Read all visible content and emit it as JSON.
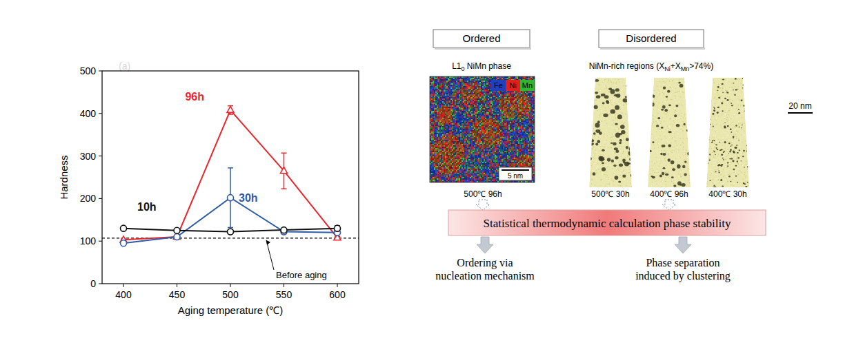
{
  "chart_data": {
    "type": "line",
    "panel_label": "(a)",
    "x_label": "Aging temperature (℃)",
    "y_label": "Hardness",
    "x": [
      400,
      450,
      500,
      550,
      600
    ],
    "xlim": [
      380,
      620
    ],
    "xticks": [
      400,
      450,
      500,
      550,
      600
    ],
    "ylim": [
      0,
      500
    ],
    "yticks": [
      0,
      100,
      200,
      300,
      400,
      500
    ],
    "grid": false,
    "series": [
      {
        "name": "96h",
        "color": "#e8262d",
        "marker": "triangle",
        "values": [
          103,
          110,
          408,
          265,
          108
        ],
        "errors": [
          2,
          2,
          10,
          42,
          3
        ]
      },
      {
        "name": "30h",
        "color": "#2f5da8",
        "marker": "circle",
        "values": [
          95,
          110,
          202,
          122,
          120
        ],
        "errors": [
          3,
          2,
          70,
          5,
          3
        ]
      },
      {
        "name": "10h",
        "color": "#111111",
        "marker": "circle",
        "values": [
          130,
          125,
          122,
          126,
          130
        ],
        "errors": [
          4,
          3,
          5,
          3,
          6
        ]
      }
    ],
    "reference": {
      "value": 107,
      "label": "Before aging",
      "line_style": "dashed"
    }
  },
  "diagram": {
    "ordered": {
      "title": "Ordered",
      "subtitle": [
        {
          "text": "L1"
        },
        {
          "text": "0",
          "sub": true
        },
        {
          "text": " NiMn phase"
        }
      ],
      "elements": [
        "Fe",
        "Ni",
        "Mn"
      ],
      "colors": [
        "#1f3fbf",
        "#e0201c",
        "#2fb52f"
      ],
      "scale_bar": "5 nm",
      "samples": [
        "500℃ 96h"
      ]
    },
    "disordered": {
      "title": "Disordered",
      "subtitle": [
        {
          "text": "NiMn-rich regions (X"
        },
        {
          "text": "Ni",
          "sub": true
        },
        {
          "text": "+X"
        },
        {
          "text": "Mn",
          "sub": true
        },
        {
          "text": ">74%)"
        }
      ],
      "scale_bar": "20 nm",
      "samples": [
        "500℃ 30h",
        "400℃ 96h",
        "400℃ 30h"
      ]
    },
    "calculation": "Statistical thermodynamic calculation phase stability",
    "outcomes": [
      "Ordering via nucleation mechanism",
      "Phase separation induced by clustering"
    ]
  }
}
